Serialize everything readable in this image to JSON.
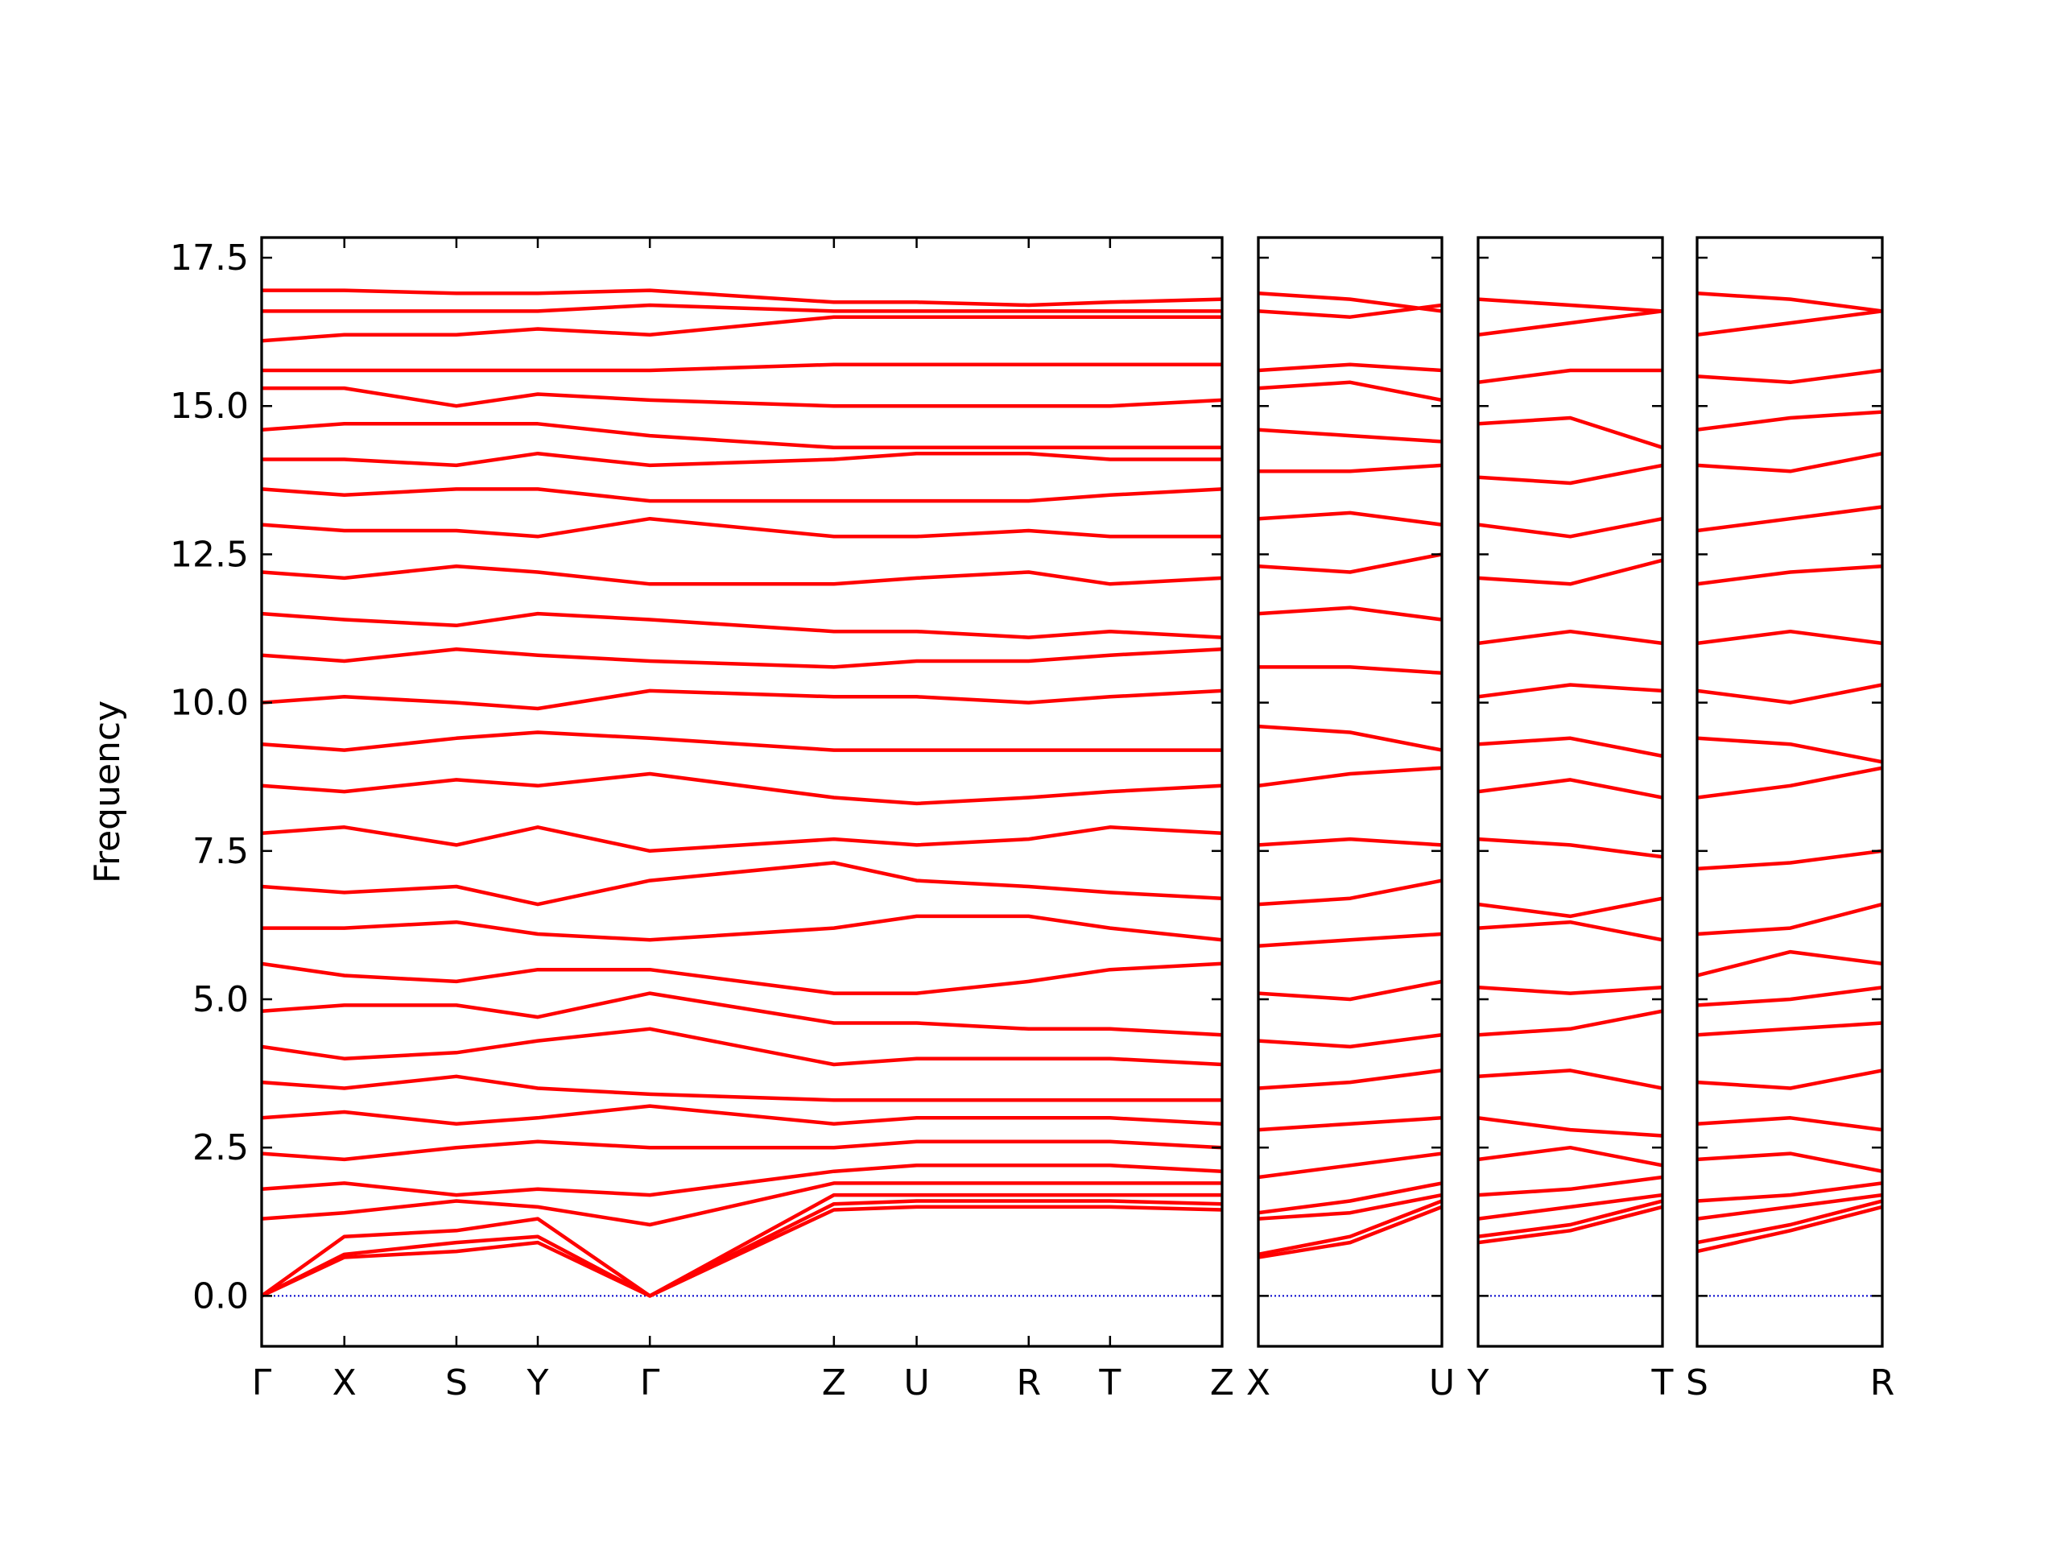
{
  "chart_data": [
    {
      "type": "line",
      "ylabel": "Frequency",
      "color": "#ff0000",
      "hline": {
        "value": 0,
        "color": "#0000cc",
        "style": "dotted"
      },
      "xlim": [
        0,
        7.2
      ],
      "xticks": [
        {
          "value": 0,
          "label": "Γ"
        },
        {
          "value": 0.62,
          "label": "X"
        },
        {
          "value": 1.46,
          "label": "S"
        },
        {
          "value": 2.07,
          "label": "Y"
        },
        {
          "value": 2.91,
          "label": "Γ"
        },
        {
          "value": 4.29,
          "label": "Z"
        },
        {
          "value": 4.91,
          "label": "U"
        },
        {
          "value": 5.75,
          "label": "R"
        },
        {
          "value": 6.36,
          "label": "T"
        },
        {
          "value": 7.2,
          "label": "Z"
        }
      ],
      "ylim": [
        -0.85,
        17.84
      ],
      "yticks": [
        {
          "value": 0,
          "label": "0.0"
        },
        2.5,
        {
          "value": 5,
          "label": "5.0"
        },
        7.5,
        {
          "value": 10,
          "label": "10.0"
        },
        12.5,
        {
          "value": 15,
          "label": "15.0"
        },
        17.5
      ],
      "x": [
        0,
        0.62,
        1.46,
        2.07,
        2.91,
        4.29,
        4.91,
        5.75,
        6.36,
        7.2
      ],
      "series": [
        {
          "values": [
            0,
            0.65,
            0.75,
            0.9,
            0,
            1.45,
            1.5,
            1.5,
            1.5,
            1.45
          ]
        },
        {
          "values": [
            0,
            0.7,
            0.9,
            1.0,
            0,
            1.55,
            1.6,
            1.6,
            1.6,
            1.55
          ]
        },
        {
          "values": [
            0,
            1.0,
            1.1,
            1.3,
            0,
            1.7,
            1.7,
            1.7,
            1.7,
            1.7
          ]
        },
        {
          "values": [
            1.3,
            1.4,
            1.6,
            1.5,
            1.2,
            1.9,
            1.9,
            1.9,
            1.9,
            1.9
          ]
        },
        {
          "values": [
            1.8,
            1.9,
            1.7,
            1.8,
            1.7,
            2.1,
            2.2,
            2.2,
            2.2,
            2.1
          ]
        },
        {
          "values": [
            2.4,
            2.3,
            2.5,
            2.6,
            2.5,
            2.5,
            2.6,
            2.6,
            2.6,
            2.5
          ]
        },
        {
          "values": [
            3.0,
            3.1,
            2.9,
            3.0,
            3.2,
            2.9,
            3.0,
            3.0,
            3.0,
            2.9
          ]
        },
        {
          "values": [
            3.6,
            3.5,
            3.7,
            3.5,
            3.4,
            3.3,
            3.3,
            3.3,
            3.3,
            3.3
          ]
        },
        {
          "values": [
            4.2,
            4.0,
            4.1,
            4.3,
            4.5,
            3.9,
            4.0,
            4.0,
            4.0,
            3.9
          ]
        },
        {
          "values": [
            4.8,
            4.9,
            4.9,
            4.7,
            5.1,
            4.6,
            4.6,
            4.5,
            4.5,
            4.4
          ]
        },
        {
          "values": [
            5.6,
            5.4,
            5.3,
            5.5,
            5.5,
            5.1,
            5.1,
            5.3,
            5.5,
            5.6
          ]
        },
        {
          "values": [
            6.2,
            6.2,
            6.3,
            6.1,
            6.0,
            6.2,
            6.4,
            6.4,
            6.2,
            6.0
          ]
        },
        {
          "values": [
            6.9,
            6.8,
            6.9,
            6.6,
            7.0,
            7.3,
            7.0,
            6.9,
            6.8,
            6.7
          ]
        },
        {
          "values": [
            7.8,
            7.9,
            7.6,
            7.9,
            7.5,
            7.7,
            7.6,
            7.7,
            7.9,
            7.8
          ]
        },
        {
          "values": [
            8.6,
            8.5,
            8.7,
            8.6,
            8.8,
            8.4,
            8.3,
            8.4,
            8.5,
            8.6
          ]
        },
        {
          "values": [
            9.3,
            9.2,
            9.4,
            9.5,
            9.4,
            9.2,
            9.2,
            9.2,
            9.2,
            9.2
          ]
        },
        {
          "values": [
            10.0,
            10.1,
            10.0,
            9.9,
            10.2,
            10.1,
            10.1,
            10.0,
            10.1,
            10.2
          ]
        },
        {
          "values": [
            10.8,
            10.7,
            10.9,
            10.8,
            10.7,
            10.6,
            10.7,
            10.7,
            10.8,
            10.9
          ]
        },
        {
          "values": [
            11.5,
            11.4,
            11.3,
            11.5,
            11.4,
            11.2,
            11.2,
            11.1,
            11.2,
            11.1
          ]
        },
        {
          "values": [
            12.2,
            12.1,
            12.3,
            12.2,
            12.0,
            12.0,
            12.1,
            12.2,
            12.0,
            12.1
          ]
        },
        {
          "values": [
            13.0,
            12.9,
            12.9,
            12.8,
            13.1,
            12.8,
            12.8,
            12.9,
            12.8,
            12.8
          ]
        },
        {
          "values": [
            13.6,
            13.5,
            13.6,
            13.6,
            13.4,
            13.4,
            13.4,
            13.4,
            13.5,
            13.6
          ]
        },
        {
          "values": [
            14.1,
            14.1,
            14.0,
            14.2,
            14.0,
            14.1,
            14.2,
            14.2,
            14.1,
            14.1
          ]
        },
        {
          "values": [
            14.6,
            14.7,
            14.7,
            14.7,
            14.5,
            14.3,
            14.3,
            14.3,
            14.3,
            14.3
          ]
        },
        {
          "values": [
            15.3,
            15.3,
            15.0,
            15.2,
            15.1,
            15.0,
            15.0,
            15.0,
            15.0,
            15.1
          ]
        },
        {
          "values": [
            15.6,
            15.6,
            15.6,
            15.6,
            15.6,
            15.7,
            15.7,
            15.7,
            15.7,
            15.7
          ]
        },
        {
          "values": [
            16.1,
            16.2,
            16.2,
            16.3,
            16.2,
            16.5,
            16.5,
            16.5,
            16.5,
            16.5
          ]
        },
        {
          "values": [
            16.6,
            16.6,
            16.6,
            16.6,
            16.7,
            16.6,
            16.6,
            16.6,
            16.6,
            16.6
          ]
        },
        {
          "values": [
            16.95,
            16.95,
            16.9,
            16.9,
            16.95,
            16.75,
            16.75,
            16.7,
            16.75,
            16.8
          ]
        }
      ]
    },
    {
      "type": "line",
      "color": "#ff0000",
      "hline": {
        "value": 0,
        "color": "#0000cc",
        "style": "dotted"
      },
      "xlim": [
        0,
        1.38
      ],
      "xticks": [
        {
          "value": 0,
          "label": "X"
        },
        {
          "value": 1.38,
          "label": "U"
        }
      ],
      "ylim": [
        -0.85,
        17.84
      ],
      "yticks": [
        0,
        2.5,
        5,
        7.5,
        10,
        12.5,
        15,
        17.5
      ],
      "x": [
        0,
        0.69,
        1.38
      ],
      "series": [
        {
          "values": [
            0.65,
            0.9,
            1.5
          ]
        },
        {
          "values": [
            0.7,
            1.0,
            1.6
          ]
        },
        {
          "values": [
            1.3,
            1.4,
            1.7
          ]
        },
        {
          "values": [
            1.4,
            1.6,
            1.9
          ]
        },
        {
          "values": [
            2.0,
            2.2,
            2.4
          ]
        },
        {
          "values": [
            2.8,
            2.9,
            3.0
          ]
        },
        {
          "values": [
            3.5,
            3.6,
            3.8
          ]
        },
        {
          "values": [
            4.3,
            4.2,
            4.4
          ]
        },
        {
          "values": [
            5.1,
            5.0,
            5.3
          ]
        },
        {
          "values": [
            5.9,
            6.0,
            6.1
          ]
        },
        {
          "values": [
            6.6,
            6.7,
            7.0
          ]
        },
        {
          "values": [
            7.6,
            7.7,
            7.6
          ]
        },
        {
          "values": [
            8.6,
            8.8,
            8.9
          ]
        },
        {
          "values": [
            9.6,
            9.5,
            9.2
          ]
        },
        {
          "values": [
            10.6,
            10.6,
            10.5
          ]
        },
        {
          "values": [
            11.5,
            11.6,
            11.4
          ]
        },
        {
          "values": [
            12.3,
            12.2,
            12.5
          ]
        },
        {
          "values": [
            13.1,
            13.2,
            13.0
          ]
        },
        {
          "values": [
            13.9,
            13.9,
            14.0
          ]
        },
        {
          "values": [
            14.6,
            14.5,
            14.4
          ]
        },
        {
          "values": [
            15.3,
            15.4,
            15.1
          ]
        },
        {
          "values": [
            15.6,
            15.7,
            15.6
          ]
        },
        {
          "values": [
            16.6,
            16.5,
            16.7
          ]
        },
        {
          "values": [
            16.9,
            16.8,
            16.6
          ]
        }
      ]
    },
    {
      "type": "line",
      "color": "#ff0000",
      "hline": {
        "value": 0,
        "color": "#0000cc",
        "style": "dotted"
      },
      "xlim": [
        0,
        1.38
      ],
      "xticks": [
        {
          "value": 0,
          "label": "Y"
        },
        {
          "value": 1.38,
          "label": "T"
        }
      ],
      "ylim": [
        -0.85,
        17.84
      ],
      "yticks": [
        0,
        2.5,
        5,
        7.5,
        10,
        12.5,
        15,
        17.5
      ],
      "x": [
        0,
        0.69,
        1.38
      ],
      "series": [
        {
          "values": [
            0.9,
            1.1,
            1.5
          ]
        },
        {
          "values": [
            1.0,
            1.2,
            1.6
          ]
        },
        {
          "values": [
            1.3,
            1.5,
            1.7
          ]
        },
        {
          "values": [
            1.7,
            1.8,
            2.0
          ]
        },
        {
          "values": [
            2.3,
            2.5,
            2.2
          ]
        },
        {
          "values": [
            3.0,
            2.8,
            2.7
          ]
        },
        {
          "values": [
            3.7,
            3.8,
            3.5
          ]
        },
        {
          "values": [
            4.4,
            4.5,
            4.8
          ]
        },
        {
          "values": [
            5.2,
            5.1,
            5.2
          ]
        },
        {
          "values": [
            6.2,
            6.3,
            6.0
          ]
        },
        {
          "values": [
            6.6,
            6.4,
            6.7
          ]
        },
        {
          "values": [
            7.7,
            7.6,
            7.4
          ]
        },
        {
          "values": [
            8.5,
            8.7,
            8.4
          ]
        },
        {
          "values": [
            9.3,
            9.4,
            9.1
          ]
        },
        {
          "values": [
            10.1,
            10.3,
            10.2
          ]
        },
        {
          "values": [
            11.0,
            11.2,
            11.0
          ]
        },
        {
          "values": [
            12.1,
            12.0,
            12.4
          ]
        },
        {
          "values": [
            13.0,
            12.8,
            13.1
          ]
        },
        {
          "values": [
            13.8,
            13.7,
            14.0
          ]
        },
        {
          "values": [
            14.7,
            14.8,
            14.3
          ]
        },
        {
          "values": [
            15.4,
            15.6,
            15.6
          ]
        },
        {
          "values": [
            16.2,
            16.4,
            16.6
          ]
        },
        {
          "values": [
            16.8,
            16.7,
            16.6
          ]
        }
      ]
    },
    {
      "type": "line",
      "color": "#ff0000",
      "hline": {
        "value": 0,
        "color": "#0000cc",
        "style": "dotted"
      },
      "xlim": [
        0,
        1.39
      ],
      "xticks": [
        {
          "value": 0,
          "label": "S"
        },
        {
          "value": 1.39,
          "label": "R"
        }
      ],
      "ylim": [
        -0.85,
        17.84
      ],
      "yticks": [
        0,
        2.5,
        5,
        7.5,
        10,
        12.5,
        15,
        17.5
      ],
      "x": [
        0,
        0.7,
        1.39
      ],
      "series": [
        {
          "values": [
            0.75,
            1.1,
            1.5
          ]
        },
        {
          "values": [
            0.9,
            1.2,
            1.6
          ]
        },
        {
          "values": [
            1.3,
            1.5,
            1.7
          ]
        },
        {
          "values": [
            1.6,
            1.7,
            1.9
          ]
        },
        {
          "values": [
            2.3,
            2.4,
            2.1
          ]
        },
        {
          "values": [
            2.9,
            3.0,
            2.8
          ]
        },
        {
          "values": [
            3.6,
            3.5,
            3.8
          ]
        },
        {
          "values": [
            4.4,
            4.5,
            4.6
          ]
        },
        {
          "values": [
            4.9,
            5.0,
            5.2
          ]
        },
        {
          "values": [
            5.4,
            5.8,
            5.6
          ]
        },
        {
          "values": [
            6.1,
            6.2,
            6.6
          ]
        },
        {
          "values": [
            7.2,
            7.3,
            7.5
          ]
        },
        {
          "values": [
            8.4,
            8.6,
            8.9
          ]
        },
        {
          "values": [
            9.4,
            9.3,
            9.0
          ]
        },
        {
          "values": [
            10.2,
            10.0,
            10.3
          ]
        },
        {
          "values": [
            11.0,
            11.2,
            11.0
          ]
        },
        {
          "values": [
            12.0,
            12.2,
            12.3
          ]
        },
        {
          "values": [
            12.9,
            13.1,
            13.3
          ]
        },
        {
          "values": [
            14.0,
            13.9,
            14.2
          ]
        },
        {
          "values": [
            14.6,
            14.8,
            14.9
          ]
        },
        {
          "values": [
            15.5,
            15.4,
            15.6
          ]
        },
        {
          "values": [
            16.2,
            16.4,
            16.6
          ]
        },
        {
          "values": [
            16.9,
            16.8,
            16.6
          ]
        }
      ]
    }
  ]
}
